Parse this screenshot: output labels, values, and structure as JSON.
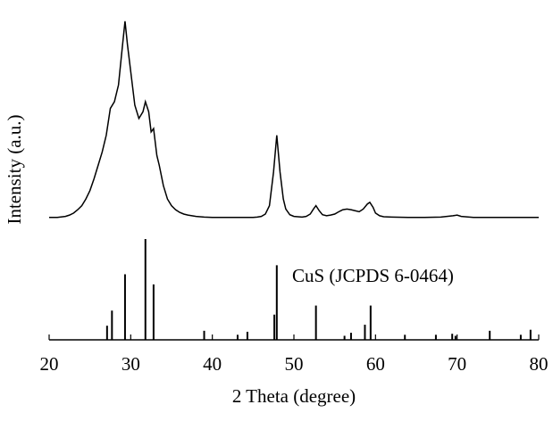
{
  "chart_data": {
    "type": "xrd",
    "x_label": "2 Theta (degree)",
    "y_label": "Intensity (a.u.)",
    "annotation": "CuS (JCPDS 6-0464)",
    "xlim": [
      20,
      80
    ],
    "xticks": [
      20,
      30,
      40,
      50,
      60,
      70,
      80
    ],
    "pattern": {
      "color": "#000000",
      "x": [
        20,
        21,
        22,
        22.5,
        23,
        23.5,
        24,
        24.5,
        25,
        25.5,
        26,
        26.5,
        27,
        27.5,
        28,
        28.5,
        29,
        29.3,
        29.6,
        30,
        30.5,
        31,
        31.5,
        31.8,
        32.2,
        32.5,
        32.8,
        33.2,
        33.5,
        34,
        34.5,
        35,
        35.5,
        36,
        36.5,
        37,
        38,
        39,
        40,
        42,
        44,
        45,
        45.5,
        46,
        46.5,
        47,
        47.5,
        47.9,
        48.3,
        48.7,
        49,
        49.5,
        50,
        51,
        51.5,
        52,
        52.4,
        52.7,
        53.1,
        53.5,
        54,
        54.5,
        55,
        55.5,
        56,
        56.5,
        57,
        57.5,
        58,
        58.5,
        59,
        59.3,
        59.7,
        60,
        60.5,
        61,
        62,
        64,
        66,
        68,
        69.5,
        70,
        70.5,
        72,
        74,
        76,
        78,
        80
      ],
      "values": [
        36.5,
        36.5,
        36.8,
        37.2,
        37.8,
        38.8,
        40,
        42,
        44.5,
        48,
        52,
        56,
        61,
        69,
        71,
        76,
        88,
        95,
        88,
        80,
        70,
        66,
        68,
        71,
        68,
        62,
        63,
        55,
        52,
        46,
        42,
        40,
        38.8,
        38,
        37.5,
        37.2,
        36.8,
        36.6,
        36.5,
        36.5,
        36.5,
        36.5,
        36.6,
        36.8,
        37.5,
        40,
        50,
        61,
        50,
        42,
        39,
        37.3,
        36.8,
        36.6,
        36.8,
        37.5,
        39,
        40,
        38.5,
        37.3,
        37,
        37.2,
        37.5,
        38.2,
        38.8,
        39,
        38.8,
        38.5,
        38.2,
        39,
        40.5,
        41,
        39.5,
        37.8,
        37,
        36.7,
        36.6,
        36.5,
        36.5,
        36.6,
        37,
        37.2,
        36.8,
        36.5,
        36.5,
        36.5,
        36.5,
        36.5
      ]
    },
    "reference": {
      "color": "#000000",
      "x": [
        27.1,
        27.7,
        29.3,
        31.8,
        32.8,
        39.0,
        43.1,
        44.3,
        47.6,
        47.9,
        52.7,
        56.2,
        57.0,
        58.7,
        59.4,
        63.6,
        67.4,
        69.4,
        69.8,
        74.0,
        77.8,
        79.0
      ],
      "values": [
        14,
        29,
        65,
        100,
        55,
        9,
        5,
        8,
        25,
        74,
        34,
        4,
        7,
        15,
        34,
        5,
        5,
        6,
        4,
        9,
        5,
        10
      ]
    }
  }
}
